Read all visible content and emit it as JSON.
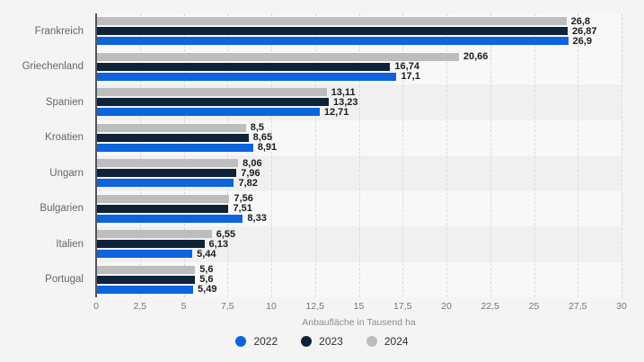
{
  "chart_data": {
    "type": "bar",
    "orientation": "horizontal",
    "title": "",
    "xlabel": "Anbaufläche in Tausend ha",
    "ylabel": "",
    "xlim": [
      0,
      30
    ],
    "grid": "dashed-vertical",
    "legend_position": "bottom",
    "categories": [
      "Frankreich",
      "Griechenland",
      "Spanien",
      "Kroatien",
      "Ungarn",
      "Bulgarien",
      "Italien",
      "Portugal"
    ],
    "bar_order_top_to_bottom": [
      "2024",
      "2023",
      "2022"
    ],
    "series": [
      {
        "name": "2022",
        "color": "#0d64dc",
        "values": [
          26.9,
          17.1,
          12.71,
          8.91,
          7.82,
          8.33,
          5.44,
          5.49
        ],
        "labels": [
          "26,9",
          "17,1",
          "12,71",
          "8,91",
          "7,82",
          "8,33",
          "5,44",
          "5,49"
        ]
      },
      {
        "name": "2023",
        "color": "#0f2338",
        "values": [
          26.87,
          16.74,
          13.23,
          8.65,
          7.96,
          7.51,
          6.13,
          5.6
        ],
        "labels": [
          "26,87",
          "16,74",
          "13,23",
          "8,65",
          "7,96",
          "7,51",
          "6,13",
          "5,6"
        ]
      },
      {
        "name": "2024",
        "color": "#bdbdbd",
        "values": [
          26.8,
          20.66,
          13.11,
          8.5,
          8.06,
          7.56,
          6.55,
          5.6
        ],
        "labels": [
          "26,8",
          "20,66",
          "13,11",
          "8,5",
          "8,06",
          "7,56",
          "6,55",
          "5,6"
        ]
      }
    ],
    "xticks": [
      0,
      2.5,
      5,
      7.5,
      10,
      12.5,
      15,
      17.5,
      20,
      22.5,
      25,
      27.5,
      30
    ],
    "xtick_labels": [
      "0",
      "2,5",
      "5",
      "7,5",
      "10",
      "12,5",
      "15",
      "17,5",
      "20",
      "22,5",
      "25",
      "27,5",
      "30"
    ],
    "legend": [
      "2022",
      "2023",
      "2024"
    ]
  },
  "colors": {
    "page_background": "#f4f4f5",
    "band_light": "#f8f8f9",
    "band_dark": "#f0f0f1",
    "gridline": "#d9d9dc",
    "axis_line": "#54545a",
    "series_2022": "#0d64dc",
    "series_2023": "#0f2338",
    "series_2024": "#bdbdbd",
    "value_label_text": "#1c1c1c",
    "category_label_text": "#666666",
    "tick_label_text": "#767676",
    "axis_title_text": "#8d8d8d",
    "legend_text": "#2e2e2e"
  }
}
